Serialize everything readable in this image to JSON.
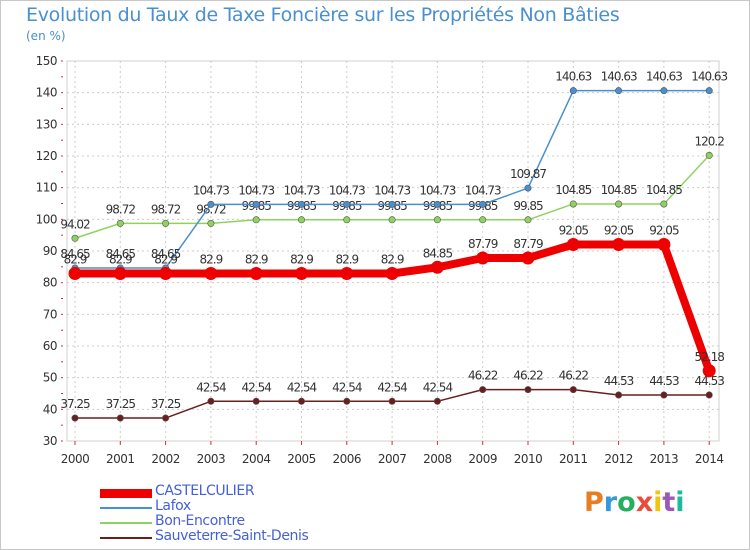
{
  "header": {
    "title": "Evolution du Taux de Taxe Foncière sur les Propriétés Non Bâties",
    "unit": "(en %)"
  },
  "logo": {
    "text": "Proxiti",
    "colors": [
      "#e67e22",
      "#3498db",
      "#27ae60",
      "#e74c3c",
      "#f1c40f",
      "#9b59b6",
      "#1abc9c"
    ]
  },
  "chart_data": {
    "type": "line",
    "title": "Evolution du Taux de Taxe Foncière sur les Propriétés Non Bâties",
    "ylabel": "(en %)",
    "xlabel": "",
    "ylim": [
      30,
      150
    ],
    "yticks": [
      30,
      40,
      50,
      60,
      70,
      80,
      90,
      100,
      110,
      120,
      130,
      140,
      150
    ],
    "grid": true,
    "categories": [
      "2000",
      "2001",
      "2002",
      "2003",
      "2004",
      "2005",
      "2006",
      "2007",
      "2008",
      "2009",
      "2010",
      "2011",
      "2012",
      "2013",
      "2014"
    ],
    "series": [
      {
        "name": "Sauveterre-Saint-Denis",
        "color": "#6b1e1e",
        "width": 1.5,
        "values": [
          37.25,
          37.25,
          37.25,
          42.54,
          42.54,
          42.54,
          42.54,
          42.54,
          42.54,
          46.22,
          46.22,
          46.22,
          44.53,
          44.53,
          44.53
        ],
        "labels": [
          "37.25",
          "37.25",
          "37.25",
          "42.54",
          "42.54",
          "42.54",
          "42.54",
          "42.54",
          "42.54",
          "46.22",
          "46.22",
          "46.22",
          "44.53",
          "44.53",
          "44.53"
        ]
      },
      {
        "name": "Bon-Encontre",
        "color": "#8fd35f",
        "width": 1.5,
        "values": [
          94.02,
          98.72,
          98.72,
          98.72,
          99.85,
          99.85,
          99.85,
          99.85,
          99.85,
          99.85,
          99.85,
          104.85,
          104.85,
          104.85,
          120.2
        ],
        "labels": [
          "94.02",
          "98.72",
          "98.72",
          "98.72",
          "99.85",
          "99.85",
          "99.85",
          "99.85",
          "99.85",
          "99.85",
          "99.85",
          "104.85",
          "104.85",
          "104.85",
          "120.2"
        ]
      },
      {
        "name": "Lafox",
        "color": "#4a8fd0",
        "width": 1.5,
        "values": [
          84.65,
          84.65,
          84.65,
          104.73,
          104.73,
          104.73,
          104.73,
          104.73,
          104.73,
          104.73,
          109.87,
          140.63,
          140.63,
          140.63,
          140.63
        ],
        "labels": [
          "84.65",
          "84.65",
          "84.65",
          "104.73",
          "104.73",
          "104.73",
          "104.73",
          "104.73",
          "104.73",
          "104.73",
          "109.87",
          "140.63",
          "140.63",
          "140.63",
          "140.63"
        ]
      },
      {
        "name": "CASTELCULIER",
        "color": "#ee0000",
        "width": 8,
        "values": [
          82.9,
          82.9,
          82.9,
          82.9,
          82.9,
          82.9,
          82.9,
          82.9,
          84.85,
          87.79,
          87.79,
          92.05,
          92.05,
          92.05,
          52.18
        ],
        "labels": [
          "82.9",
          "82.9",
          "82.9",
          "82.9",
          "82.9",
          "82.9",
          "82.9",
          "82.9",
          "84.85",
          "87.79",
          "87.79",
          "92.05",
          "92.05",
          "92.05",
          "52.18"
        ]
      }
    ],
    "legend": {
      "placement": "bottom-left",
      "entries": [
        "CASTELCULIER",
        "Lafox",
        "Bon-Encontre",
        "Sauveterre-Saint-Denis"
      ]
    }
  }
}
